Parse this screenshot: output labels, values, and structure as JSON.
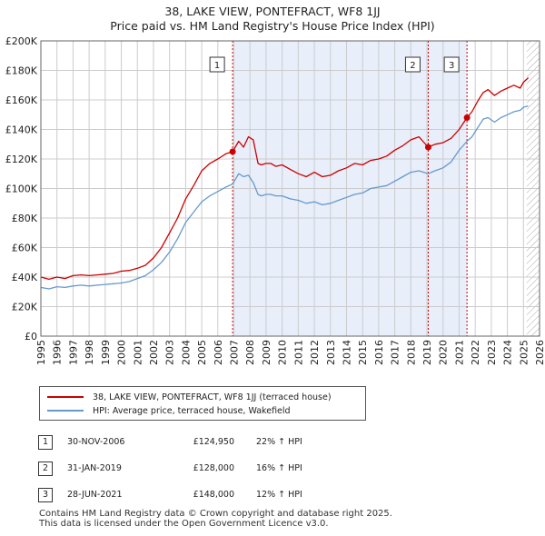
{
  "title": {
    "line1": "38, LAKE VIEW, PONTEFRACT, WF8 1JJ",
    "line2": "Price paid vs. HM Land Registry's House Price Index (HPI)"
  },
  "colors": {
    "property": "#cc0000",
    "hpi": "#6699cc",
    "shade": "#e8eefa",
    "grid": "#cccccc",
    "event": "#cc0000"
  },
  "legend": {
    "property_label": "38, LAKE VIEW, PONTEFRACT, WF8 1JJ (terraced house)",
    "hpi_label": "HPI: Average price, terraced house, Wakefield"
  },
  "sales": [
    {
      "num": "1",
      "date": "30-NOV-2006",
      "price": "£124,950",
      "hpi_change": "22% ↑ HPI"
    },
    {
      "num": "2",
      "date": "31-JAN-2019",
      "price": "£128,000",
      "hpi_change": "16% ↑ HPI"
    },
    {
      "num": "3",
      "date": "28-JUN-2021",
      "price": "£148,000",
      "hpi_change": "12% ↑ HPI"
    }
  ],
  "footer": {
    "line1": "Contains HM Land Registry data © Crown copyright and database right 2025.",
    "line2": "This data is licensed under the Open Government Licence v3.0."
  },
  "chart_data": {
    "type": "line",
    "xlim": [
      1995,
      2026
    ],
    "ylim": [
      0,
      200000
    ],
    "y_ticks": [
      0,
      20000,
      40000,
      60000,
      80000,
      100000,
      120000,
      140000,
      160000,
      180000,
      200000
    ],
    "y_tick_labels": [
      "£0",
      "£20K",
      "£40K",
      "£60K",
      "£80K",
      "£100K",
      "£120K",
      "£140K",
      "£160K",
      "£180K",
      "£200K"
    ],
    "x_ticks": [
      1995,
      1996,
      1997,
      1998,
      1999,
      2000,
      2001,
      2002,
      2003,
      2004,
      2005,
      2006,
      2007,
      2008,
      2009,
      2010,
      2011,
      2012,
      2013,
      2014,
      2015,
      2016,
      2017,
      2018,
      2019,
      2020,
      2021,
      2022,
      2023,
      2024,
      2025,
      2026
    ],
    "x_tick_labels": [
      "1995",
      "1996",
      "1997",
      "1998",
      "1999",
      "2000",
      "2001",
      "2002",
      "2003",
      "2004",
      "2005",
      "2006",
      "2007",
      "2008",
      "2009",
      "2010",
      "2011",
      "2012",
      "2013",
      "2014",
      "2015",
      "2016",
      "2017",
      "2018",
      "2019",
      "2020",
      "2021",
      "2022",
      "2023",
      "2024",
      "2025",
      "2026"
    ],
    "shaded_range": [
      2006.92,
      2021.49
    ],
    "future_hatch_from": 2025.2,
    "events": [
      {
        "label": "1",
        "x": 2006.92,
        "y": 124950
      },
      {
        "label": "2",
        "x": 2019.08,
        "y": 128000
      },
      {
        "label": "3",
        "x": 2021.49,
        "y": 148000
      }
    ],
    "series": [
      {
        "name": "38, LAKE VIEW, PONTEFRACT, WF8 1JJ (terraced house)",
        "x": [
          1995.0,
          1995.5,
          1996.0,
          1996.5,
          1997.0,
          1997.5,
          1998.0,
          1998.5,
          1999.0,
          1999.5,
          2000.0,
          2000.5,
          2001.0,
          2001.5,
          2002.0,
          2002.5,
          2003.0,
          2003.5,
          2004.0,
          2004.5,
          2005.0,
          2005.5,
          2006.0,
          2006.5,
          2006.92,
          2007.3,
          2007.6,
          2007.9,
          2008.2,
          2008.5,
          2008.7,
          2009.0,
          2009.3,
          2009.6,
          2010.0,
          2010.5,
          2011.0,
          2011.5,
          2012.0,
          2012.5,
          2013.0,
          2013.5,
          2014.0,
          2014.5,
          2015.0,
          2015.5,
          2016.0,
          2016.5,
          2017.0,
          2017.5,
          2018.0,
          2018.5,
          2019.08,
          2019.5,
          2020.0,
          2020.5,
          2021.0,
          2021.49,
          2021.8,
          2022.2,
          2022.5,
          2022.8,
          2023.2,
          2023.6,
          2024.0,
          2024.4,
          2024.8,
          2025.0,
          2025.3
        ],
        "values": [
          40000,
          38500,
          40000,
          39000,
          41000,
          41500,
          41000,
          41500,
          42000,
          42500,
          44000,
          44500,
          46000,
          48000,
          53000,
          60000,
          70000,
          80000,
          93000,
          102000,
          112000,
          117000,
          120000,
          123500,
          124950,
          132000,
          128000,
          135000,
          133000,
          117000,
          116000,
          117000,
          117000,
          115000,
          116000,
          113000,
          110000,
          108000,
          111000,
          108000,
          109000,
          112000,
          114000,
          117000,
          116000,
          119000,
          120000,
          122000,
          126000,
          129000,
          133000,
          135000,
          128000,
          130000,
          131000,
          134000,
          140000,
          148000,
          152000,
          160000,
          165000,
          167000,
          163000,
          166000,
          168000,
          170000,
          168000,
          172000,
          175000
        ]
      },
      {
        "name": "HPI: Average price, terraced house, Wakefield",
        "x": [
          1995.0,
          1995.5,
          1996.0,
          1996.5,
          1997.0,
          1997.5,
          1998.0,
          1998.5,
          1999.0,
          1999.5,
          2000.0,
          2000.5,
          2001.0,
          2001.5,
          2002.0,
          2002.5,
          2003.0,
          2003.5,
          2004.0,
          2004.5,
          2005.0,
          2005.5,
          2006.0,
          2006.5,
          2006.92,
          2007.3,
          2007.6,
          2007.9,
          2008.2,
          2008.5,
          2008.7,
          2009.0,
          2009.3,
          2009.6,
          2010.0,
          2010.5,
          2011.0,
          2011.5,
          2012.0,
          2012.5,
          2013.0,
          2013.5,
          2014.0,
          2014.5,
          2015.0,
          2015.5,
          2016.0,
          2016.5,
          2017.0,
          2017.5,
          2018.0,
          2018.5,
          2019.08,
          2019.5,
          2020.0,
          2020.5,
          2021.0,
          2021.49,
          2021.8,
          2022.2,
          2022.5,
          2022.8,
          2023.2,
          2023.6,
          2024.0,
          2024.4,
          2024.8,
          2025.0,
          2025.3
        ],
        "values": [
          33000,
          32000,
          33500,
          33000,
          34000,
          34500,
          34000,
          34500,
          35000,
          35500,
          36000,
          37000,
          39000,
          41000,
          45000,
          50000,
          57000,
          66000,
          77000,
          84000,
          91000,
          95000,
          98000,
          101000,
          103000,
          110000,
          108000,
          109000,
          104000,
          96000,
          95000,
          96000,
          96000,
          95000,
          95000,
          93000,
          92000,
          90000,
          91000,
          89000,
          90000,
          92000,
          94000,
          96000,
          97000,
          100000,
          101000,
          102000,
          105000,
          108000,
          111000,
          112000,
          110000,
          112000,
          114000,
          118000,
          126000,
          132000,
          135000,
          142000,
          147000,
          148000,
          145000,
          148000,
          150000,
          152000,
          153000,
          155000,
          156000
        ]
      }
    ]
  }
}
